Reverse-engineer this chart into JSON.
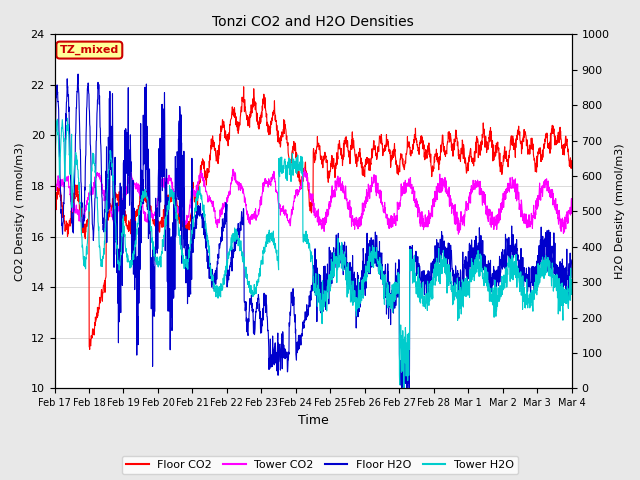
{
  "title": "Tonzi CO2 and H2O Densities",
  "xlabel": "Time",
  "ylabel_left": "CO2 Density ( mmol/m3)",
  "ylabel_right": "H2O Density (mmol/m3)",
  "ylim_left": [
    10,
    24
  ],
  "ylim_right": [
    0,
    1000
  ],
  "yticks_left": [
    10,
    12,
    14,
    16,
    18,
    20,
    22,
    24
  ],
  "yticks_right": [
    0,
    100,
    200,
    300,
    400,
    500,
    600,
    700,
    800,
    900,
    1000
  ],
  "colors": {
    "floor_co2": "#FF0000",
    "tower_co2": "#FF00FF",
    "floor_h2o": "#0000CC",
    "tower_h2o": "#00CCCC"
  },
  "legend_labels": [
    "Floor CO2",
    "Tower CO2",
    "Floor H2O",
    "Tower H2O"
  ],
  "annotation_text": "TZ_mixed",
  "annotation_box_facecolor": "#FFFF99",
  "annotation_box_edgecolor": "#CC0000",
  "annotation_text_color": "#CC0000",
  "n_points": 2000,
  "background_color": "#E8E8E8",
  "plot_bg_color": "#FFFFFF",
  "grid_color": "#CCCCCC",
  "xticklabels": [
    "Feb 17",
    "Feb 18",
    "Feb 19",
    "Feb 20",
    "Feb 21",
    "Feb 22",
    "Feb 23",
    "Feb 24",
    "Feb 25",
    "Feb 26",
    "Feb 27",
    "Feb 28",
    "Mar 1",
    "Mar 2",
    "Mar 3",
    "Mar 4"
  ],
  "figsize": [
    6.4,
    4.8
  ],
  "dpi": 100
}
